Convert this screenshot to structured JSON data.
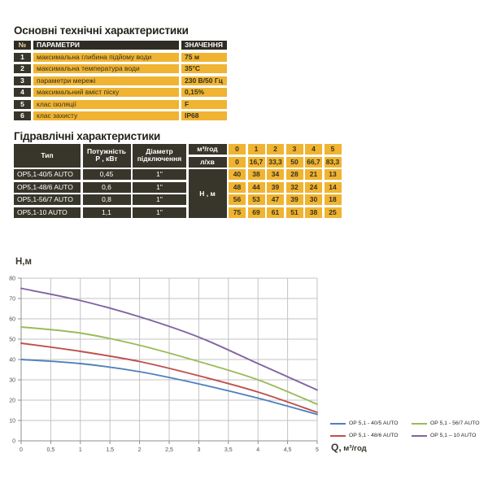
{
  "colors": {
    "cell_yellow": "#f0b432",
    "cell_dark": "#38362b",
    "header_dark": "#2e2c24",
    "grid_line": "#c3c3c3",
    "axis_line": "#8f8f8f",
    "tick_text": "#55524a"
  },
  "tech_section": {
    "title": "Основні технічні характеристики",
    "headers": {
      "num": "№",
      "param": "ПАРАМЕТРИ",
      "value": "ЗНАЧЕННЯ"
    },
    "rows": [
      {
        "num": "1",
        "param": "максимальна глибина підйому води",
        "value": "75 м"
      },
      {
        "num": "2",
        "param": "максимальна температура води",
        "value": "35°С"
      },
      {
        "num": "3",
        "param": "параметри мережі",
        "value": "230 В/50 Гц"
      },
      {
        "num": "4",
        "param": "максимальний вміст піску",
        "value": "0,15%"
      },
      {
        "num": "5",
        "param": "клас ізоляції",
        "value": "F"
      },
      {
        "num": "6",
        "param": "клас захисту",
        "value": "IP68"
      }
    ]
  },
  "hydro_section": {
    "title": "Гідравлічні характеристики",
    "headers": {
      "type": "Тип",
      "power_line1": "Потужність",
      "power_line2": "Р , кВт",
      "diameter_line1": "Діаметр",
      "diameter_line2": "підключення",
      "flow_m3": "м³/год",
      "flow_l": "л/хв",
      "head": "Н , м"
    },
    "flow_m3_values": [
      "0",
      "1",
      "2",
      "3",
      "4",
      "5"
    ],
    "flow_l_values": [
      "0",
      "16,7",
      "33,3",
      "50",
      "66,7",
      "83,3"
    ],
    "rows": [
      {
        "type": "OP5,1-40/5 AUTO",
        "power": "0,45",
        "diameter": "1\"",
        "values": [
          "40",
          "38",
          "34",
          "28",
          "21",
          "13"
        ]
      },
      {
        "type": "OP5,1-48/6 AUTO",
        "power": "0,6",
        "diameter": "1\"",
        "values": [
          "48",
          "44",
          "39",
          "32",
          "24",
          "14"
        ]
      },
      {
        "type": "OP5,1-56/7 AUTO",
        "power": "0,8",
        "diameter": "1\"",
        "values": [
          "56",
          "53",
          "47",
          "39",
          "30",
          "18"
        ]
      },
      {
        "type": "OP5,1-10 AUTO",
        "power": "1,1",
        "diameter": "1\"",
        "values": [
          "75",
          "69",
          "61",
          "51",
          "38",
          "25"
        ]
      }
    ]
  },
  "chart_data": {
    "type": "line",
    "title": "",
    "xlabel": "Q, м³/год",
    "xlabel_parts": [
      "Q,",
      " м³/год"
    ],
    "ylabel": "Н,м",
    "x": [
      0,
      1,
      2,
      3,
      4,
      5
    ],
    "series": [
      {
        "name": "OP 5,1 - 40/5 AUTO",
        "color": "#4f81bd",
        "values": [
          40,
          38,
          34,
          28,
          21,
          13
        ]
      },
      {
        "name": "OP 5,1 - 48/6 AUTO",
        "color": "#c0504d",
        "values": [
          48,
          44,
          39,
          32,
          24,
          14
        ]
      },
      {
        "name": "OP 5,1 - 56/7 AUTO",
        "color": "#9bbb59",
        "values": [
          56,
          53,
          47,
          39,
          30,
          18
        ]
      },
      {
        "name": "OP 5,1 – 10 AUTO",
        "color": "#8064a2",
        "values": [
          75,
          69,
          61,
          51,
          38,
          25
        ]
      }
    ],
    "xlim": [
      0,
      5
    ],
    "ylim": [
      0,
      80
    ],
    "x_tick_step": 0.5,
    "x_ticks": [
      "0",
      "0,5",
      "1",
      "1,5",
      "2",
      "2,5",
      "3",
      "3,5",
      "4",
      "4,5",
      "5"
    ],
    "y_ticks": [
      "0",
      "10",
      "20",
      "30",
      "40",
      "50",
      "60",
      "70",
      "80"
    ],
    "grid": true,
    "legend_position": "right-bottom"
  }
}
